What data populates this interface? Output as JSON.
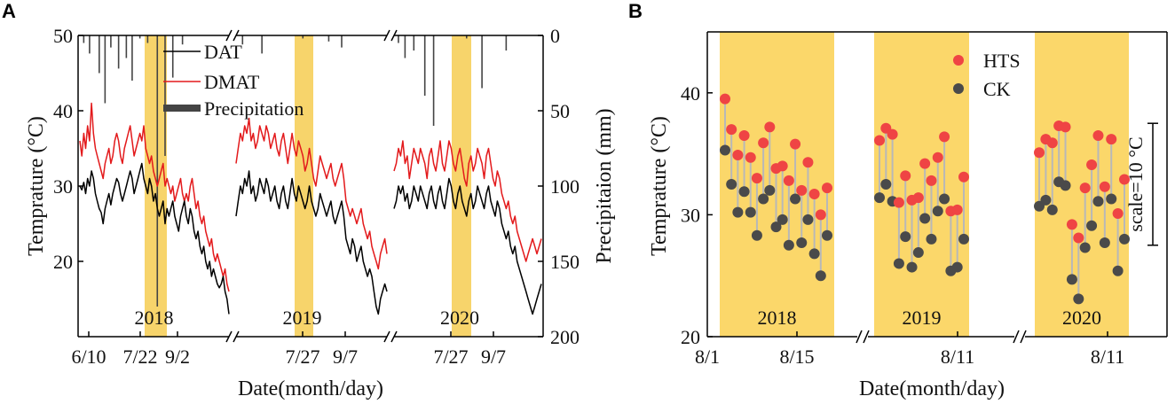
{
  "chart_data": [
    {
      "panel": "A",
      "type": "line",
      "xlabel": "Date(month/day)",
      "ylabel_left": "Temprature (°C)",
      "ylabel_right": "Precipitaion (mm)",
      "ylim_left": [
        10,
        50
      ],
      "ylim_right": [
        200,
        0
      ],
      "yticks_left": [
        "20",
        "30",
        "40",
        "50"
      ],
      "yticks_right": [
        "0",
        "50",
        "100",
        "150",
        "200"
      ],
      "legend": [
        "DAT",
        "DMAT",
        "Precipitation"
      ],
      "colors": {
        "DAT": "#000000",
        "DMAT": "#e31a1c",
        "precip": "#444444",
        "highlight": "#f7d46b"
      },
      "segments": [
        {
          "year": "2018",
          "x_ticks": [
            "6/10",
            "7/22",
            "9/2"
          ],
          "DAT": [
            30,
            29.5,
            30.5,
            29,
            31,
            30,
            32,
            31,
            29,
            28,
            27,
            26.5,
            25,
            27,
            28,
            29,
            27.5,
            29,
            30,
            31,
            30.5,
            29,
            28,
            29,
            30,
            31,
            32,
            31,
            29,
            30,
            31,
            32,
            33,
            31,
            30,
            29,
            31,
            30,
            28,
            29,
            27,
            26,
            27,
            28,
            25,
            27,
            26,
            27,
            28,
            26,
            25,
            24,
            26,
            27,
            28,
            26,
            25,
            27,
            26,
            24,
            23,
            24,
            22,
            21,
            22,
            20,
            19,
            20,
            18,
            19,
            18,
            17,
            16.5,
            17,
            18,
            16,
            15,
            13
          ],
          "DMAT": [
            36,
            34,
            37,
            35,
            38,
            36,
            41,
            37,
            35,
            34,
            33,
            32,
            31,
            33,
            34,
            35,
            33,
            34,
            36,
            37,
            36,
            34,
            33,
            35,
            36,
            37,
            38,
            36,
            34,
            35,
            36,
            37,
            36,
            38,
            35,
            34,
            33,
            34,
            32,
            31,
            30,
            31,
            32,
            33,
            30,
            31,
            30,
            29,
            30,
            28,
            29,
            30,
            31,
            29,
            28,
            29,
            28,
            30,
            31,
            29,
            27,
            28,
            26,
            25,
            26,
            24,
            23,
            22,
            23,
            21,
            20,
            21,
            20,
            19,
            18,
            19,
            17,
            16
          ],
          "precip": [
            0,
            0,
            5,
            0,
            0,
            12,
            0,
            0,
            0,
            0,
            25,
            0,
            0,
            45,
            0,
            0,
            8,
            0,
            0,
            0,
            22,
            0,
            0,
            0,
            15,
            0,
            0,
            30,
            0,
            0,
            0,
            2,
            0,
            0,
            0,
            5,
            0,
            0,
            0,
            0,
            180,
            0,
            0,
            0,
            80,
            0,
            0,
            0,
            28,
            0,
            0,
            0,
            0,
            6,
            0,
            0,
            0,
            0,
            0,
            0,
            0,
            0,
            0,
            0,
            0,
            0,
            0,
            0,
            0,
            0,
            0,
            0,
            0,
            0,
            0,
            0,
            0,
            0
          ]
        },
        {
          "year": "2019",
          "x_ticks": [
            "7/27",
            "9/7"
          ],
          "DAT": [
            26,
            28,
            30,
            29,
            31,
            30,
            32,
            29,
            30,
            28,
            29,
            31,
            30,
            29,
            31,
            30,
            28,
            29,
            30,
            28,
            27,
            29,
            30,
            28,
            27,
            29,
            31,
            29,
            28,
            30,
            29,
            28,
            27,
            28,
            30,
            28,
            27,
            26,
            27,
            29,
            28,
            27,
            26,
            27,
            28,
            26,
            25,
            26,
            27,
            28,
            26,
            23,
            22,
            21,
            23,
            22,
            20,
            21,
            22,
            20,
            19,
            18,
            19,
            18,
            16,
            14,
            13,
            15,
            16,
            17,
            16
          ],
          "DMAT": [
            33,
            35,
            37,
            36,
            38,
            37,
            39,
            36,
            37,
            35,
            36,
            38,
            37,
            36,
            38,
            37,
            35,
            36,
            37,
            35,
            34,
            36,
            37,
            35,
            33,
            35,
            37,
            35,
            34,
            36,
            35,
            34,
            32,
            33,
            35,
            33,
            31,
            30,
            32,
            34,
            33,
            32,
            31,
            32,
            33,
            31,
            30,
            31,
            32,
            33,
            31,
            28,
            27,
            26,
            27,
            26,
            25,
            26,
            27,
            25,
            24,
            23,
            24,
            22,
            21,
            20,
            19,
            21,
            22,
            23,
            21
          ],
          "precip": [
            0,
            0,
            0,
            6,
            0,
            0,
            0,
            0,
            0,
            0,
            0,
            0,
            12,
            0,
            0,
            0,
            0,
            0,
            0,
            0,
            0,
            0,
            0,
            0,
            0,
            0,
            0,
            0,
            0,
            0,
            0,
            2,
            0,
            0,
            0,
            0,
            0,
            0,
            0,
            0,
            0,
            0,
            0,
            4,
            0,
            0,
            0,
            0,
            0,
            8,
            0,
            0,
            0,
            0,
            0,
            0,
            0,
            0,
            0,
            0,
            0,
            0,
            0,
            0,
            0,
            0,
            0,
            0,
            0,
            0,
            0
          ]
        },
        {
          "year": "2020",
          "x_ticks": [
            "7/27",
            "9/7"
          ],
          "DAT": [
            27,
            28,
            30,
            29,
            30,
            28,
            29,
            27,
            28,
            30,
            29,
            28,
            30,
            29,
            28,
            27,
            29,
            30,
            28,
            27,
            29,
            30,
            28,
            27,
            29,
            31,
            30,
            28,
            27,
            29,
            30,
            28,
            27,
            26,
            28,
            29,
            27,
            28,
            30,
            29,
            28,
            27,
            29,
            30,
            28,
            27,
            26,
            28,
            27,
            25,
            24,
            23,
            24,
            22,
            21,
            22,
            20,
            19,
            18,
            17,
            16,
            15,
            14,
            13,
            14,
            15,
            16,
            17
          ],
          "DMAT": [
            32,
            33,
            35,
            34,
            36,
            33,
            34,
            31,
            33,
            35,
            34,
            33,
            35,
            34,
            33,
            31,
            34,
            35,
            33,
            32,
            34,
            36,
            33,
            32,
            34,
            36,
            35,
            33,
            32,
            34,
            35,
            33,
            31,
            30,
            33,
            34,
            32,
            33,
            35,
            34,
            33,
            31,
            34,
            35,
            33,
            31,
            30,
            32,
            31,
            29,
            28,
            27,
            28,
            26,
            25,
            26,
            24,
            23,
            22,
            21,
            20,
            21,
            22,
            23,
            22,
            21,
            22,
            23
          ],
          "precip": [
            0,
            0,
            5,
            0,
            0,
            15,
            0,
            0,
            0,
            10,
            0,
            0,
            0,
            0,
            40,
            0,
            0,
            0,
            60,
            0,
            0,
            0,
            0,
            0,
            0,
            0,
            0,
            0,
            0,
            0,
            0,
            0,
            0,
            2,
            0,
            0,
            0,
            0,
            0,
            0,
            35,
            0,
            0,
            0,
            0,
            0,
            0,
            0,
            0,
            0,
            0,
            10,
            0,
            0,
            0,
            0,
            0,
            0,
            0,
            0,
            0,
            0,
            0,
            0,
            0,
            0,
            0,
            0
          ]
        }
      ]
    },
    {
      "panel": "B",
      "type": "scatter",
      "xlabel": "Date(month/day)",
      "ylabel": "Temprature (°C)",
      "ylim": [
        20,
        45
      ],
      "yticks": [
        "20",
        "30",
        "40"
      ],
      "legend": [
        "HTS",
        "CK"
      ],
      "colors": {
        "HTS": "#ef4444",
        "CK": "#4a4a4a",
        "link": "#b8b8b8",
        "highlight": "#fbd76a"
      },
      "scale_label": "scale=10 °C",
      "segments": [
        {
          "year": "2018",
          "x_ticks": [
            "8/1",
            "8/15"
          ],
          "HTS": [
            39.5,
            37,
            34.9,
            36.5,
            34.7,
            33,
            35.9,
            37.2,
            33.8,
            34,
            32.8,
            35.8,
            32,
            34.3,
            31.7,
            30,
            32.2
          ],
          "CK": [
            35.3,
            32.5,
            30.2,
            31.9,
            30.2,
            28.3,
            31.3,
            32,
            29,
            29.6,
            27.5,
            31.3,
            27.7,
            29.6,
            26.8,
            25,
            28.3
          ]
        },
        {
          "year": "2019",
          "x_ticks": [
            "8/11"
          ],
          "HTS": [
            36.1,
            37.1,
            36.6,
            31,
            33.2,
            31.2,
            31.4,
            34.2,
            32.8,
            34.7,
            36.4,
            30.3,
            30.4,
            33.1
          ],
          "CK": [
            31.4,
            32.5,
            31.1,
            26,
            28.2,
            25.7,
            26.9,
            29.7,
            28,
            30.3,
            31.3,
            25.4,
            25.7,
            28
          ]
        },
        {
          "year": "2020",
          "x_ticks": [
            "8/11"
          ],
          "HTS": [
            35.1,
            36.2,
            35.9,
            37.3,
            37.2,
            29.2,
            28.1,
            32.2,
            34.1,
            36.5,
            32.3,
            36.2,
            30.1,
            32.9
          ],
          "CK": [
            30.7,
            31.2,
            30.4,
            32.7,
            32.4,
            24.7,
            23.1,
            27.3,
            29.1,
            31.1,
            27.7,
            31.3,
            25.4,
            28
          ]
        }
      ]
    }
  ],
  "panel_labels": {
    "a": "A",
    "b": "B"
  }
}
